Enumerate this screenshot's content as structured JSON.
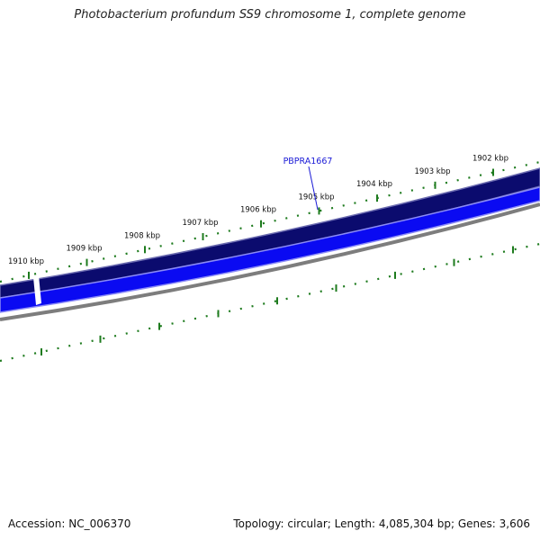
{
  "title": "Photobacterium profundum SS9 chromosome 1, complete genome",
  "scale": {
    "labels": [
      "1910 kbp",
      "1909 kbp",
      "1908 kbp",
      "1907 kbp",
      "1906 kbp",
      "1905 kbp",
      "1904 kbp",
      "1903 kbp",
      "1902 kbp"
    ]
  },
  "gene_label": "PBPRA1667",
  "accession": "Accession: NC_006370",
  "stats": "Topology: circular; Length: 4,085,304 bp; Genes: 3,606",
  "colors": {
    "forward_strand": "#0b0b6e",
    "reverse_strand": "#0a0af2",
    "backbone": "#808080",
    "ticks": "#1e7b1e",
    "gene_label": "#1a1ad6"
  }
}
